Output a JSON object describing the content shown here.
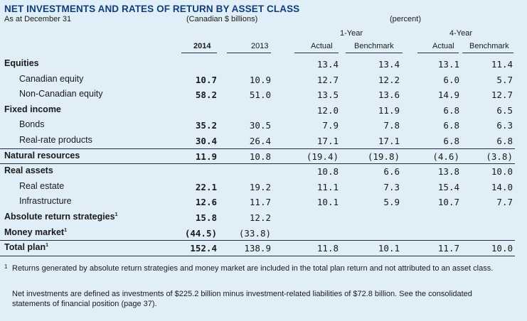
{
  "title": "NET INVESTMENTS AND RATES OF RETURN BY ASSET CLASS",
  "as_at": "As at December 31",
  "units_left": "(Canadian $ billions)",
  "units_right": "(percent)",
  "period_1": "1-Year",
  "period_2": "4-Year",
  "columns": [
    "2014",
    "2013",
    "Actual",
    "Benchmark",
    "Actual",
    "Benchmark"
  ],
  "rows": [
    {
      "label": "Equities",
      "bold": true,
      "indent": false,
      "v2014": "",
      "v2013": "",
      "a1": "13.4",
      "b1": "13.4",
      "a4": "13.1",
      "b4": "11.4"
    },
    {
      "label": "Canadian equity",
      "bold": false,
      "indent": true,
      "v2014": "10.7",
      "v2013": "10.9",
      "a1": "12.7",
      "b1": "12.2",
      "a4": "6.0",
      "b4": "5.7"
    },
    {
      "label": "Non-Canadian equity",
      "bold": false,
      "indent": true,
      "v2014": "58.2",
      "v2013": "51.0",
      "a1": "13.5",
      "b1": "13.6",
      "a4": "14.9",
      "b4": "12.7"
    },
    {
      "label": "Fixed income",
      "bold": true,
      "indent": false,
      "v2014": "",
      "v2013": "",
      "a1": "12.0",
      "b1": "11.9",
      "a4": "6.8",
      "b4": "6.5"
    },
    {
      "label": "Bonds",
      "bold": false,
      "indent": true,
      "v2014": "35.2",
      "v2013": "30.5",
      "a1": "7.9",
      "b1": "7.8",
      "a4": "6.8",
      "b4": "6.3"
    },
    {
      "label": "Real-rate products",
      "bold": false,
      "indent": true,
      "v2014": "30.4",
      "v2013": "26.4",
      "a1": "17.1",
      "b1": "17.1",
      "a4": "6.8",
      "b4": "6.8"
    },
    {
      "label": "Natural resources",
      "bold": true,
      "indent": false,
      "v2014": "11.9",
      "v2013": "10.8",
      "a1": "(19.4)",
      "b1": "(19.8)",
      "a4": "(4.6)",
      "b4": "(3.8)"
    },
    {
      "label": "Real assets",
      "bold": true,
      "indent": false,
      "v2014": "",
      "v2013": "",
      "a1": "10.8",
      "b1": "6.6",
      "a4": "13.8",
      "b4": "10.0"
    },
    {
      "label": "Real estate",
      "bold": false,
      "indent": true,
      "v2014": "22.1",
      "v2013": "19.2",
      "a1": "11.1",
      "b1": "7.3",
      "a4": "15.4",
      "b4": "14.0"
    },
    {
      "label": "Infrastructure",
      "bold": false,
      "indent": true,
      "v2014": "12.6",
      "v2013": "11.7",
      "a1": "10.1",
      "b1": "5.9",
      "a4": "10.7",
      "b4": "7.7"
    },
    {
      "label": "Absolute return strategies",
      "sup": "1",
      "bold": true,
      "indent": false,
      "v2014": "15.8",
      "v2013": "12.2",
      "a1": "",
      "b1": "",
      "a4": "",
      "b4": ""
    },
    {
      "label": "Money market",
      "sup": "1",
      "bold": true,
      "indent": false,
      "v2014": "(44.5)",
      "v2013": "(33.8)",
      "a1": "",
      "b1": "",
      "a4": "",
      "b4": ""
    },
    {
      "label": "Total plan",
      "sup": "1",
      "bold": true,
      "indent": false,
      "v2014": "152.4",
      "v2013": "138.9",
      "a1": "11.8",
      "b1": "10.1",
      "a4": "11.7",
      "b4": "10.0"
    }
  ],
  "footnote_marker": "1",
  "footnote": "Returns generated by absolute return strategies and money market are included in the total plan return and not attributed to an asset class.",
  "note": "Net investments are defined as investments of $225.2 billion minus investment-related liabilities of $72.8 billion. See the consolidated statements of financial position (page 37)."
}
